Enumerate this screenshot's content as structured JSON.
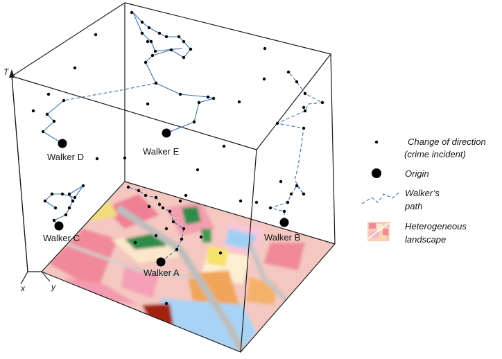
{
  "axes": {
    "t": "T",
    "x": "x",
    "y": "y"
  },
  "walkers": [
    {
      "id": "walker-a",
      "label": "Walker A"
    },
    {
      "id": "walker-b",
      "label": "Walker B"
    },
    {
      "id": "walker-c",
      "label": "Walker C"
    },
    {
      "id": "walker-d",
      "label": "Walker D"
    },
    {
      "id": "walker-e",
      "label": "Walker E"
    }
  ],
  "legend": {
    "change_line1": "Change of direction",
    "change_line2": "(crime incident)",
    "origin": "Origin",
    "path_line1": "Walker’s",
    "path_line2": "path",
    "landscape_line1": "Heterogeneous",
    "landscape_line2": "landscape"
  },
  "colors": {
    "path": "#3b6fb0",
    "residential": "#f08a9a",
    "commercial": "#f7d9a8",
    "park": "#2e8b4a",
    "water": "#a9d3f5",
    "industrial": "#f0a65a",
    "road": "#b9b9b9"
  }
}
